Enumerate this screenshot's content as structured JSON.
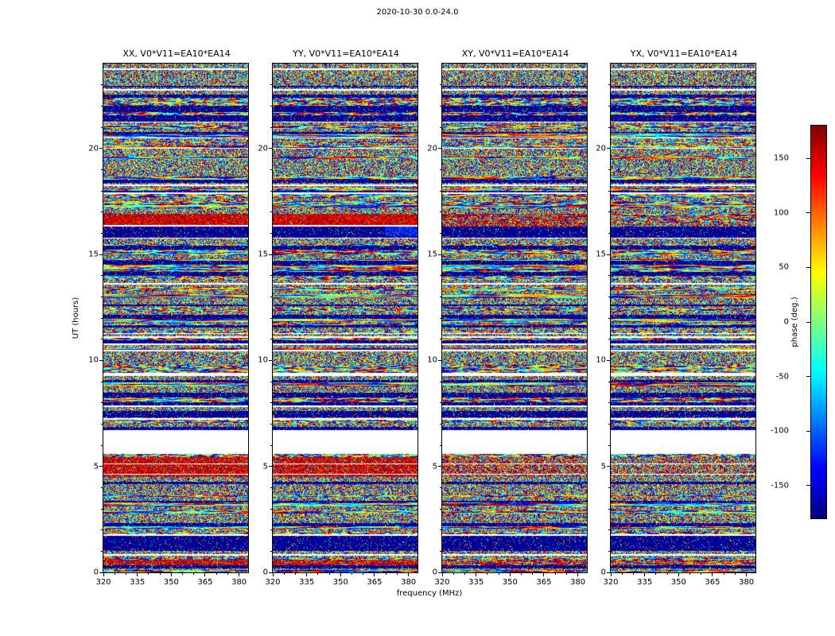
{
  "chart_data": {
    "type": "heatmap",
    "title": "2020-10-30 0.0-24.0",
    "xlabel": "frequency (MHz)",
    "ylabel": "UT (hours)",
    "xlim": [
      320,
      384
    ],
    "ylim": [
      0,
      24
    ],
    "xticks": [
      320,
      335,
      350,
      365,
      380
    ],
    "xticks_minor": [
      325,
      330,
      340,
      345,
      355,
      360,
      370,
      375
    ],
    "yticks": [
      0,
      5,
      10,
      15,
      20
    ],
    "yticks_minor": [
      1,
      2,
      3,
      4,
      6,
      7,
      8,
      9,
      11,
      12,
      13,
      14,
      16,
      17,
      18,
      19,
      21,
      22,
      23
    ],
    "panels": [
      {
        "pol": "XX",
        "label": "XX, V0*V11=EA10*EA14"
      },
      {
        "pol": "YY",
        "label": "YY, V0*V11=EA10*EA14"
      },
      {
        "pol": "XY",
        "label": "XY, V0*V11=EA10*EA14"
      },
      {
        "pol": "YX",
        "label": "YX, V0*V11=EA10*EA14"
      }
    ],
    "colorbar": {
      "label": "phase (deg.)",
      "min": -180,
      "max": 180,
      "ticks": [
        150,
        100,
        50,
        0,
        -50,
        -100,
        -150
      ],
      "colormap": "jet"
    },
    "data_description": "Visibility phase waterfall plots for baseline V0*V11 = EA10*EA14 on 2020-10-30, UT 0.0-24.0 h, for the four polarization products XX, YY, XY, YX. Phase is noise-like (uniform -180..180 deg, jet colormap) in fine horizontal time rows, interrupted by thin white and black time strips, a blank (no-data) interval near UT 5.6-6.7, and saturated red (phase ~ +150..180 deg) interference bands, strongest in XX and YY.",
    "features": {
      "blank_intervals_ut": [
        [
          5.6,
          6.7
        ]
      ],
      "dark_intervals_ut": [
        [
          1.0,
          1.6
        ],
        [
          6.72,
          6.85
        ],
        [
          7.3,
          7.6
        ],
        [
          21.25,
          21.55
        ]
      ],
      "rfi_bands": [
        {
          "ut": [
            15.85,
            16.9
          ],
          "strength": {
            "XX": 0.95,
            "YY": 0.95,
            "XY": 0.5,
            "YX": 0.15
          }
        },
        {
          "ut": [
            4.5,
            5.45
          ],
          "strength": {
            "XX": 0.85,
            "YY": 0.8,
            "XY": 0.35,
            "YX": 0.2
          }
        },
        {
          "ut": [
            0.25,
            0.6
          ],
          "strength": {
            "XX": 0.8,
            "YY": 0.75,
            "XY": 0.45,
            "YX": 0.4
          }
        }
      ]
    }
  }
}
